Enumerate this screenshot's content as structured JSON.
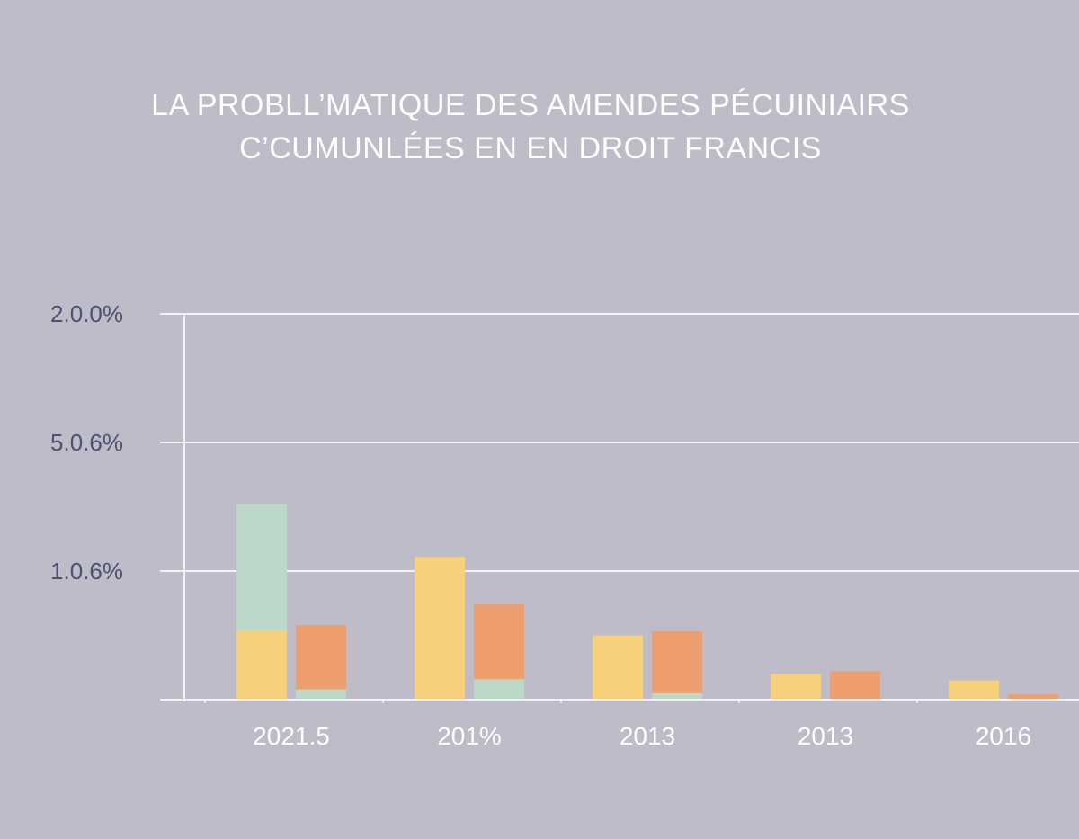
{
  "chart_data": {
    "type": "bar",
    "title_lines": [
      "LA PROBLL’MATIQUE DES AMENDES PÉCUINIAIRS",
      "C’CUMUNLÉES EN EN DROIT FRANCIS"
    ],
    "y_tick_labels": [
      "2.0.0%",
      "5.0.6%",
      "1.0.6%"
    ],
    "ylim": [
      0,
      3
    ],
    "categories": [
      "2021.5",
      "201%",
      "2013",
      "2013",
      "2016"
    ],
    "groups": [
      {
        "category": "2021.5",
        "bars": [
          {
            "segments": [
              {
                "color": "#f7d07c",
                "value": 0.54
              },
              {
                "color": "#bcd8c9",
                "value": 0.98
              }
            ]
          },
          {
            "segments": [
              {
                "color": "#bcd8c9",
                "value": 0.08
              },
              {
                "color": "#ee9d6c",
                "value": 0.5
              }
            ]
          }
        ]
      },
      {
        "category": "201%",
        "bars": [
          {
            "segments": [
              {
                "color": "#f7d07c",
                "value": 1.11
              }
            ]
          },
          {
            "segments": [
              {
                "color": "#bcd8c9",
                "value": 0.16
              },
              {
                "color": "#ee9d6c",
                "value": 0.58
              }
            ]
          }
        ]
      },
      {
        "category": "2013",
        "bars": [
          {
            "segments": [
              {
                "color": "#f7d07c",
                "value": 0.5
              }
            ]
          },
          {
            "segments": [
              {
                "color": "#bcd8c9",
                "value": 0.05
              },
              {
                "color": "#ee9d6c",
                "value": 0.48
              }
            ]
          }
        ]
      },
      {
        "category": "2013",
        "bars": [
          {
            "segments": [
              {
                "color": "#f7d07c",
                "value": 0.2
              }
            ]
          },
          {
            "segments": [
              {
                "color": "#ee9d6c",
                "value": 0.22
              }
            ]
          }
        ]
      },
      {
        "category": "2016",
        "bars": [
          {
            "segments": [
              {
                "color": "#f7d07c",
                "value": 0.15
              }
            ]
          },
          {
            "segments": [
              {
                "color": "#ee9d6c",
                "value": 0.04
              }
            ]
          }
        ]
      }
    ],
    "grid": true,
    "colors": {
      "background": "#bdbcc8",
      "yellow": "#f7d07c",
      "green": "#bcd8c9",
      "orange": "#ee9d6c",
      "axis": "#f2f2f6"
    }
  }
}
